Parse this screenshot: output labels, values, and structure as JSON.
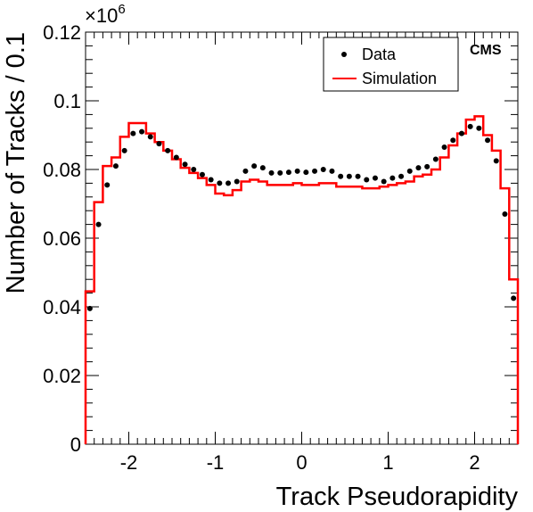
{
  "chart_data": {
    "type": "line",
    "xlabel": "Track Pseudorapidity",
    "ylabel": "Number of Tracks / 0.1",
    "y_multiplier_label": "×10",
    "y_multiplier_exponent": "6",
    "experiment_label": "CMS",
    "xlim": [
      -2.5,
      2.5
    ],
    "ylim": [
      0,
      0.12
    ],
    "x_ticks": [
      -2,
      -1,
      0,
      1,
      2
    ],
    "x_tick_labels": [
      "-2",
      "-1",
      "0",
      "1",
      "2"
    ],
    "y_ticks": [
      0,
      0.02,
      0.04,
      0.06,
      0.08,
      0.1,
      0.12
    ],
    "y_tick_labels": [
      "0",
      "0.02",
      "0.04",
      "0.06",
      "0.08",
      "0.1",
      "0.12"
    ],
    "legend": {
      "position": "top-right",
      "entries": [
        "Data",
        "Simulation"
      ]
    },
    "colors": {
      "data": "#000000",
      "simulation": "#ff0000"
    },
    "bin_edges": [
      -2.5,
      -2.4,
      -2.3,
      -2.2,
      -2.1,
      -2.0,
      -1.9,
      -1.8,
      -1.7,
      -1.6,
      -1.5,
      -1.4,
      -1.3,
      -1.2,
      -1.1,
      -1.0,
      -0.9,
      -0.8,
      -0.7,
      -0.6,
      -0.5,
      -0.4,
      -0.3,
      -0.2,
      -0.1,
      0.0,
      0.1,
      0.2,
      0.3,
      0.4,
      0.5,
      0.6,
      0.7,
      0.8,
      0.9,
      1.0,
      1.1,
      1.2,
      1.3,
      1.4,
      1.5,
      1.6,
      1.7,
      1.8,
      1.9,
      2.0,
      2.1,
      2.2,
      2.3,
      2.4,
      2.5
    ],
    "series": [
      {
        "name": "Data",
        "style": "markers",
        "x": [
          -2.45,
          -2.35,
          -2.25,
          -2.15,
          -2.05,
          -1.95,
          -1.85,
          -1.75,
          -1.65,
          -1.55,
          -1.45,
          -1.35,
          -1.25,
          -1.15,
          -1.05,
          -0.95,
          -0.85,
          -0.75,
          -0.65,
          -0.55,
          -0.45,
          -0.35,
          -0.25,
          -0.15,
          -0.05,
          0.05,
          0.15,
          0.25,
          0.35,
          0.45,
          0.55,
          0.65,
          0.75,
          0.85,
          0.95,
          1.05,
          1.15,
          1.25,
          1.35,
          1.45,
          1.55,
          1.65,
          1.75,
          1.85,
          1.95,
          2.05,
          2.15,
          2.25,
          2.35,
          2.45
        ],
        "values": [
          0.0395,
          0.064,
          0.0755,
          0.081,
          0.0855,
          0.0905,
          0.091,
          0.0895,
          0.0875,
          0.0855,
          0.0835,
          0.0815,
          0.08,
          0.0785,
          0.077,
          0.076,
          0.076,
          0.0765,
          0.0795,
          0.081,
          0.0805,
          0.079,
          0.079,
          0.0792,
          0.0795,
          0.0792,
          0.0795,
          0.08,
          0.0795,
          0.078,
          0.078,
          0.078,
          0.077,
          0.0775,
          0.0765,
          0.0775,
          0.078,
          0.0795,
          0.0805,
          0.0808,
          0.083,
          0.0865,
          0.0885,
          0.0905,
          0.0925,
          0.092,
          0.0885,
          0.0825,
          0.067,
          0.0425
        ]
      },
      {
        "name": "Simulation",
        "style": "step",
        "values": [
          0.0445,
          0.0705,
          0.081,
          0.0835,
          0.0895,
          0.0935,
          0.0935,
          0.0905,
          0.088,
          0.0855,
          0.083,
          0.0805,
          0.079,
          0.0775,
          0.0755,
          0.073,
          0.0725,
          0.074,
          0.0765,
          0.077,
          0.0765,
          0.0755,
          0.0755,
          0.0755,
          0.076,
          0.0755,
          0.0755,
          0.076,
          0.076,
          0.075,
          0.075,
          0.075,
          0.0745,
          0.0745,
          0.075,
          0.0755,
          0.076,
          0.0765,
          0.078,
          0.0785,
          0.08,
          0.0835,
          0.087,
          0.0905,
          0.0945,
          0.0955,
          0.09,
          0.0855,
          0.0745,
          0.048
        ]
      }
    ]
  }
}
